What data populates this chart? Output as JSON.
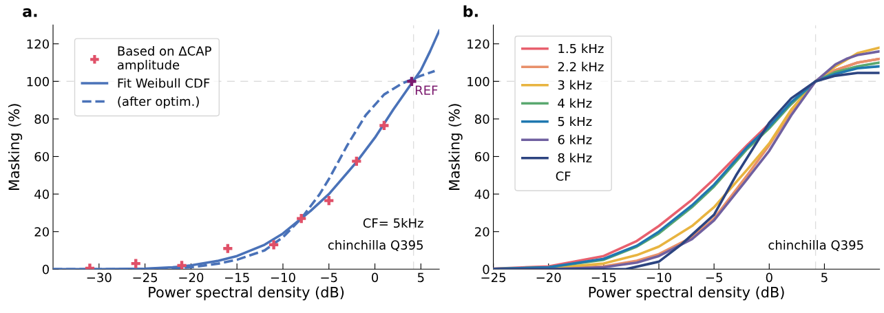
{
  "chart_data": [
    {
      "type": "line",
      "title": "a.",
      "xlabel": "Power spectral density (dB)",
      "ylabel": "Masking (%)",
      "xlim": [
        -35,
        7
      ],
      "xticks": [
        {
          "value": -30,
          "label": "−30"
        },
        {
          "value": -25,
          "label": "−25"
        },
        {
          "value": -20,
          "label": "−20"
        },
        {
          "value": -15,
          "label": "−15"
        },
        {
          "value": -10,
          "label": "−10"
        },
        {
          "value": -5,
          "label": "−5"
        },
        0,
        5
      ],
      "ylim": [
        0,
        130
      ],
      "yticks": [
        0,
        20,
        40,
        60,
        80,
        100,
        120
      ],
      "grid": false,
      "legend": "top left",
      "series": [
        {
          "name": "Based on ΔCAP\namplitude",
          "type": "scatter",
          "marker": "cross",
          "color": "#e05068",
          "x": [
            -31,
            -26,
            -21,
            -16,
            -11,
            -8,
            -5,
            -2,
            1
          ],
          "values": [
            0.5,
            3,
            2,
            11,
            13,
            27,
            36.5,
            57.5,
            76.5
          ]
        },
        {
          "type": "scatter",
          "marker": "cross",
          "color": "#7b1a6e",
          "x": [
            4
          ],
          "values": [
            100
          ]
        },
        {
          "name": "Fit Weibull CDF",
          "type": "line",
          "marker": "none",
          "line_style": "solid",
          "color": "#4a72b8",
          "x": [
            -35,
            -30,
            -25,
            -22,
            -20,
            -17,
            -15,
            -12,
            -10,
            -7,
            -5,
            -2,
            0,
            2,
            4,
            5,
            6,
            7
          ],
          "values": [
            0,
            0,
            0.3,
            1,
            2,
            4.5,
            7,
            13,
            19,
            31,
            40,
            57,
            70,
            85,
            99,
            106,
            116,
            127
          ]
        },
        {
          "name": "(after optim.)",
          "type": "line",
          "marker": "none",
          "line_style": "dashed",
          "color": "#4a72b8",
          "x": [
            -35,
            -30,
            -25,
            -20,
            -17,
            -15,
            -12,
            -10,
            -8,
            -6,
            -5,
            -3,
            -1,
            1,
            3,
            4,
            5,
            6.5
          ],
          "values": [
            0,
            0,
            0.1,
            1,
            3,
            5,
            10,
            17,
            27,
            40,
            48,
            66,
            82,
            93,
            99,
            101,
            103,
            105.5
          ]
        }
      ],
      "ref_lines": [
        {
          "axis": "y",
          "value": 100,
          "color": "#dddddd",
          "line_style": "dashed"
        },
        {
          "axis": "x",
          "value": 4.2,
          "color": "#dddddd",
          "line_style": "dashed"
        }
      ],
      "annotations": [
        {
          "text": "REF",
          "x": 4,
          "y": 100
        },
        "CF= 5kHz",
        "chinchilla Q395"
      ]
    },
    {
      "type": "line",
      "title": "b.",
      "xlabel": "Power spectral density (dB)",
      "ylabel": "Masking (%)",
      "xlim": [
        -25,
        10
      ],
      "xticks": [
        {
          "value": -25,
          "label": "−25"
        },
        {
          "value": -20,
          "label": "−20"
        },
        {
          "value": -15,
          "label": "−15"
        },
        {
          "value": -10,
          "label": "−10"
        },
        {
          "value": -5,
          "label": "−5"
        },
        0,
        5
      ],
      "ylim": [
        0,
        130
      ],
      "yticks": [
        0,
        20,
        40,
        60,
        80,
        100,
        120
      ],
      "grid": false,
      "legend": "top left",
      "legend_title": "CF",
      "marker": "none",
      "line_style": "solid",
      "series": [
        {
          "name": "1.5 kHz",
          "color": "#e8606e",
          "x": [
            -25,
            -20,
            -15,
            -12,
            -10,
            -7,
            -5,
            -2,
            0,
            2,
            4.2,
            6,
            8,
            10
          ],
          "values": [
            0.3,
            1.5,
            7,
            15,
            23,
            37,
            48,
            66,
            77.5,
            88,
            100,
            106,
            110,
            112
          ]
        },
        {
          "name": "2.2 kHz",
          "color": "#e8906a",
          "x": [
            -25,
            -20,
            -15,
            -12,
            -10,
            -7,
            -5,
            -2,
            0,
            2,
            4.2,
            6,
            8,
            10
          ],
          "values": [
            0,
            0.2,
            1.5,
            4.5,
            8,
            17,
            27,
            50,
            66,
            84,
            100,
            106,
            110,
            112
          ]
        },
        {
          "name": "3 kHz",
          "color": "#e8b440",
          "x": [
            -25,
            -20,
            -15,
            -12,
            -10,
            -7,
            -5,
            -2,
            0,
            2,
            4.2,
            6,
            8,
            10
          ],
          "values": [
            0,
            0.5,
            3,
            7.5,
            12,
            23,
            33,
            53,
            67,
            85,
            100,
            108,
            115,
            118
          ]
        },
        {
          "name": "4 kHz",
          "color": "#5aa870",
          "x": [
            -25,
            -20,
            -15,
            -12,
            -10,
            -7,
            -5,
            -2,
            0,
            2,
            4.2,
            6,
            8,
            10
          ],
          "values": [
            0.2,
            1,
            5,
            12,
            19,
            33,
            44,
            64,
            75,
            88,
            100,
            105,
            108,
            110
          ]
        },
        {
          "name": "5 kHz",
          "color": "#1f78b0",
          "x": [
            -25,
            -20,
            -15,
            -12,
            -10,
            -7,
            -5,
            -2,
            0,
            2,
            4.2,
            6,
            8,
            10
          ],
          "values": [
            0.2,
            1,
            5.5,
            12.5,
            20,
            34,
            45,
            65,
            76,
            89,
            100,
            104,
            107,
            108
          ]
        },
        {
          "name": "6 kHz",
          "color": "#7060a0",
          "x": [
            -25,
            -20,
            -15,
            -12,
            -10,
            -7,
            -5,
            -2,
            0,
            2,
            4.2,
            6,
            7,
            8,
            10
          ],
          "values": [
            0,
            0,
            1,
            3.5,
            7,
            16,
            26,
            48,
            63,
            82,
            100,
            109,
            112,
            114,
            116
          ]
        },
        {
          "name": "8 kHz",
          "color": "#2c4480",
          "x": [
            -25,
            -20,
            -15,
            -13,
            -10,
            -8,
            -5,
            -3,
            0,
            2,
            4.2,
            6,
            8,
            10
          ],
          "values": [
            0,
            0,
            0,
            0,
            4,
            13,
            29,
            50,
            78,
            91,
            100,
            103,
            104.5,
            104.5
          ]
        }
      ],
      "ref_lines": [
        {
          "axis": "y",
          "value": 100,
          "color": "#dddddd",
          "line_style": "dashed"
        },
        {
          "axis": "x",
          "value": 4.2,
          "color": "#dddddd",
          "line_style": "dashed"
        }
      ],
      "annotations": [
        "chinchilla Q395"
      ]
    }
  ]
}
